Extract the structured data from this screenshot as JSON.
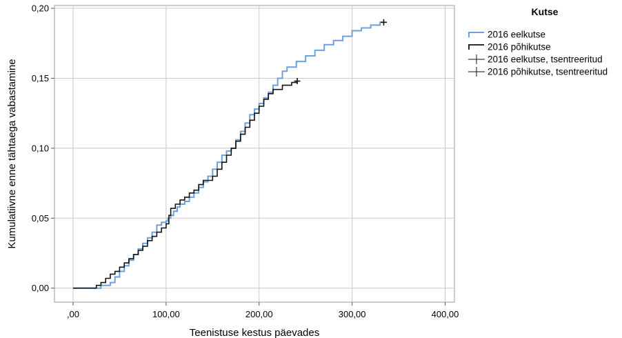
{
  "chart_data": {
    "type": "line",
    "chart_style": "step",
    "xlabel": "Teenistuse kestus päevades",
    "ylabel": "Kumulatiivne enne tähtaega vabastamine",
    "xlim": [
      -20,
      410
    ],
    "ylim": [
      -0.01,
      0.202
    ],
    "x_ticks": [
      0,
      100,
      200,
      300,
      400
    ],
    "x_tick_labels": [
      ",00",
      "100,00",
      "200,00",
      "300,00",
      "400,00"
    ],
    "y_ticks": [
      0,
      0.05,
      0.1,
      0.15,
      0.2
    ],
    "y_tick_labels": [
      "0,00",
      "0,05",
      "0,10",
      "0,15",
      "0,20"
    ],
    "grid": true,
    "legend": {
      "title": "Kutse",
      "placement": "right",
      "entries": [
        "2016 eelkutse",
        "2016 põhikutse",
        "2016 eelkutse, tsentreeritud",
        "2016 põhikutse, tsentreeritud"
      ]
    },
    "series": [
      {
        "name": "2016 eelkutse",
        "color": "#6f9fd8",
        "points": [
          [
            0,
            0
          ],
          [
            25,
            0
          ],
          [
            30,
            0.002
          ],
          [
            40,
            0.004
          ],
          [
            45,
            0.008
          ],
          [
            50,
            0.012
          ],
          [
            55,
            0.016
          ],
          [
            60,
            0.02
          ],
          [
            65,
            0.024
          ],
          [
            70,
            0.028
          ],
          [
            75,
            0.032
          ],
          [
            80,
            0.036
          ],
          [
            85,
            0.04
          ],
          [
            90,
            0.045
          ],
          [
            95,
            0.047
          ],
          [
            100,
            0.048
          ],
          [
            102,
            0.05
          ],
          [
            105,
            0.052
          ],
          [
            108,
            0.055
          ],
          [
            112,
            0.058
          ],
          [
            115,
            0.06
          ],
          [
            120,
            0.062
          ],
          [
            125,
            0.065
          ],
          [
            130,
            0.068
          ],
          [
            135,
            0.072
          ],
          [
            140,
            0.076
          ],
          [
            145,
            0.08
          ],
          [
            150,
            0.085
          ],
          [
            155,
            0.09
          ],
          [
            160,
            0.095
          ],
          [
            165,
            0.098
          ],
          [
            170,
            0.1
          ],
          [
            175,
            0.106
          ],
          [
            180,
            0.112
          ],
          [
            185,
            0.118
          ],
          [
            190,
            0.124
          ],
          [
            195,
            0.128
          ],
          [
            200,
            0.132
          ],
          [
            205,
            0.136
          ],
          [
            210,
            0.14
          ],
          [
            215,
            0.145
          ],
          [
            220,
            0.15
          ],
          [
            225,
            0.155
          ],
          [
            230,
            0.158
          ],
          [
            240,
            0.162
          ],
          [
            250,
            0.166
          ],
          [
            260,
            0.17
          ],
          [
            270,
            0.174
          ],
          [
            280,
            0.177
          ],
          [
            290,
            0.18
          ],
          [
            300,
            0.184
          ],
          [
            310,
            0.186
          ],
          [
            320,
            0.188
          ],
          [
            330,
            0.19
          ],
          [
            334,
            0.19
          ]
        ]
      },
      {
        "name": "2016 põhikutse",
        "color": "#111111",
        "points": [
          [
            0,
            0
          ],
          [
            20,
            0
          ],
          [
            25,
            0.002
          ],
          [
            30,
            0.004
          ],
          [
            35,
            0.007
          ],
          [
            40,
            0.01
          ],
          [
            45,
            0.012
          ],
          [
            50,
            0.015
          ],
          [
            55,
            0.018
          ],
          [
            60,
            0.021
          ],
          [
            65,
            0.024
          ],
          [
            70,
            0.027
          ],
          [
            75,
            0.03
          ],
          [
            80,
            0.034
          ],
          [
            85,
            0.037
          ],
          [
            90,
            0.04
          ],
          [
            95,
            0.043
          ],
          [
            100,
            0.046
          ],
          [
            103,
            0.052
          ],
          [
            105,
            0.057
          ],
          [
            110,
            0.06
          ],
          [
            115,
            0.063
          ],
          [
            120,
            0.065
          ],
          [
            125,
            0.068
          ],
          [
            130,
            0.07
          ],
          [
            135,
            0.074
          ],
          [
            140,
            0.077
          ],
          [
            150,
            0.08
          ],
          [
            155,
            0.085
          ],
          [
            160,
            0.09
          ],
          [
            165,
            0.095
          ],
          [
            170,
            0.1
          ],
          [
            175,
            0.105
          ],
          [
            180,
            0.11
          ],
          [
            185,
            0.115
          ],
          [
            190,
            0.12
          ],
          [
            195,
            0.125
          ],
          [
            200,
            0.13
          ],
          [
            205,
            0.135
          ],
          [
            210,
            0.139
          ],
          [
            215,
            0.142
          ],
          [
            225,
            0.145
          ],
          [
            235,
            0.147
          ],
          [
            241,
            0.148
          ]
        ]
      }
    ],
    "censored": [
      {
        "name": "2016 eelkutse, tsentreeritud",
        "color": "#111111",
        "points": [
          [
            334,
            0.19
          ]
        ]
      },
      {
        "name": "2016 põhikutse, tsentreeritud",
        "color": "#111111",
        "points": [
          [
            241,
            0.148
          ]
        ]
      }
    ]
  }
}
